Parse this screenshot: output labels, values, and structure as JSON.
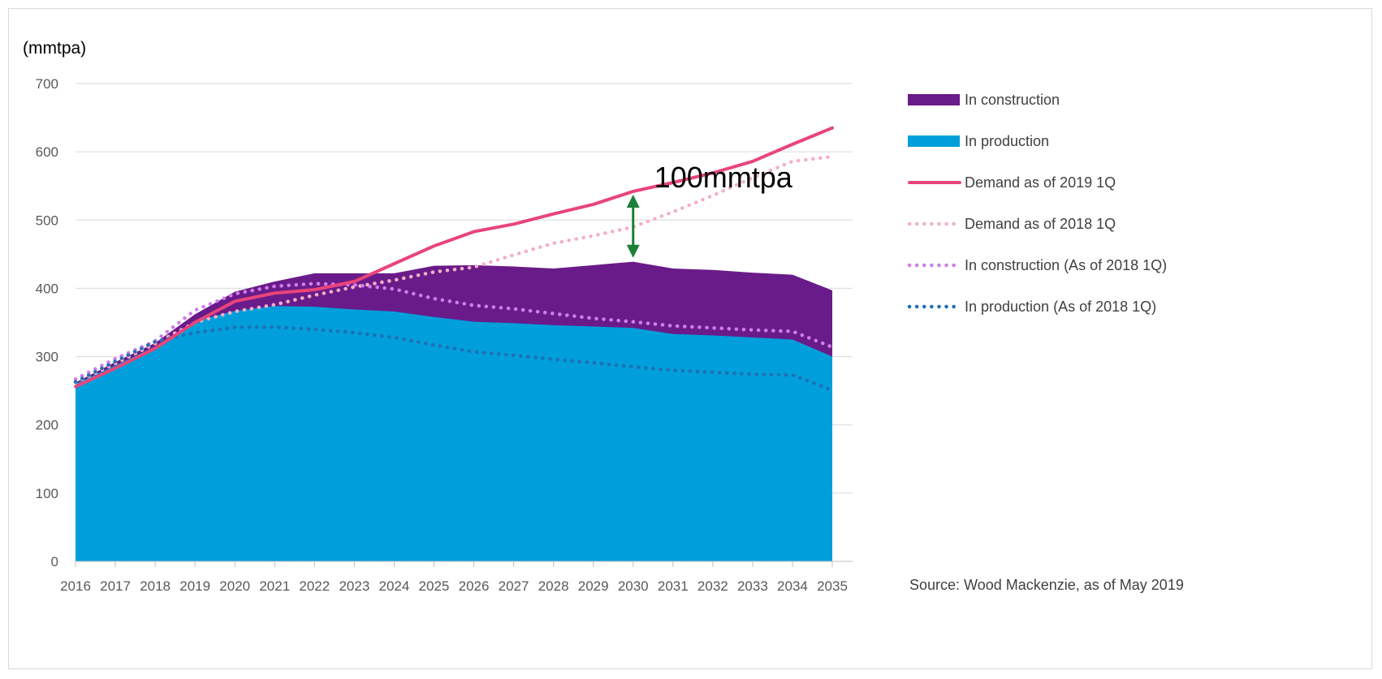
{
  "chart_data": {
    "type": "area",
    "unit_label": "(mmtpa)",
    "xlabel": "",
    "ylabel": "",
    "ylim": [
      0,
      700
    ],
    "yticks": [
      0,
      100,
      200,
      300,
      400,
      500,
      600,
      700
    ],
    "grid": true,
    "legend_position": "right",
    "x": [
      "2016",
      "2017",
      "2018",
      "2019",
      "2020",
      "2021",
      "2022",
      "2023",
      "2024",
      "2025",
      "2026",
      "2027",
      "2028",
      "2029",
      "2030",
      "2031",
      "2032",
      "2033",
      "2034",
      "2035"
    ],
    "series": [
      {
        "name": "In construction",
        "kind": "area",
        "color": "#6A1B8A",
        "values": [
          262,
          292,
          320,
          362,
          395,
          410,
          422,
          422,
          422,
          433,
          434,
          432,
          429,
          434,
          439,
          429,
          427,
          423,
          420,
          397
        ]
      },
      {
        "name": "In production",
        "kind": "area",
        "color": "#009FDB",
        "values": [
          260,
          287,
          315,
          352,
          367,
          374,
          373,
          369,
          366,
          358,
          351,
          349,
          346,
          344,
          342,
          333,
          331,
          328,
          325,
          300
        ]
      },
      {
        "name": "Demand as of 2019 1Q",
        "kind": "line",
        "style": "solid",
        "color": "#E8457A",
        "values": [
          256,
          283,
          312,
          350,
          381,
          393,
          398,
          410,
          436,
          462,
          483,
          494,
          509,
          523,
          542,
          555,
          569,
          586,
          611,
          635
        ]
      },
      {
        "name": "Demand as of 2018 1Q",
        "kind": "line",
        "style": "dotted",
        "color": "#F4AFC6",
        "values": [
          262,
          290,
          319,
          350,
          366,
          376,
          390,
          402,
          412,
          424,
          431,
          449,
          466,
          477,
          490,
          512,
          536,
          562,
          586,
          593
        ]
      },
      {
        "name": "In construction (As of 2018 1Q)",
        "kind": "line",
        "style": "dotted",
        "color": "#D07DEB",
        "values": [
          267,
          297,
          323,
          368,
          392,
          403,
          407,
          405,
          399,
          385,
          375,
          370,
          363,
          356,
          351,
          345,
          342,
          339,
          337,
          314
        ]
      },
      {
        "name": "In production (As of 2018 1Q)",
        "kind": "line",
        "style": "dotted",
        "color": "#1F6FB5",
        "values": [
          263,
          293,
          322,
          335,
          343,
          343,
          340,
          335,
          328,
          317,
          307,
          302,
          296,
          291,
          285,
          280,
          277,
          274,
          273,
          251
        ]
      }
    ],
    "annotation": {
      "text": "100mmtpa",
      "x": "2030",
      "from": 440,
      "to": 542,
      "color": "#1A7F37"
    },
    "source": "Source: Wood Mackenzie, as of May 2019"
  }
}
